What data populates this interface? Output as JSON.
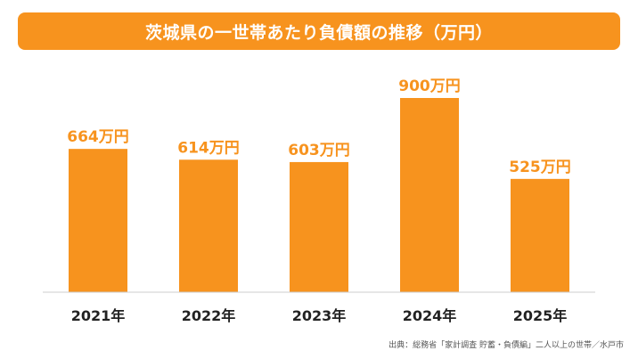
{
  "chart_data": {
    "type": "bar",
    "title": "茨城県の一世帯あたり負債額の推移（万円）",
    "categories": [
      "2021年",
      "2022年",
      "2023年",
      "2024年",
      "2025年"
    ],
    "values": [
      664,
      614,
      603,
      900,
      525
    ],
    "value_labels": [
      "664万円",
      "614万円",
      "603万円",
      "900万円",
      "525万円"
    ],
    "ylim": [
      0,
      1000
    ],
    "grid": false,
    "legend": "none",
    "colors": {
      "bar": "#F7931E",
      "title_bg": "#F7931E",
      "label": "#F7931E",
      "axis": "#cccccc",
      "category": "#222222"
    }
  },
  "source_note": "出典：総務省「家計調査 貯蓄・負債編」二人以上の世帯／水戸市"
}
